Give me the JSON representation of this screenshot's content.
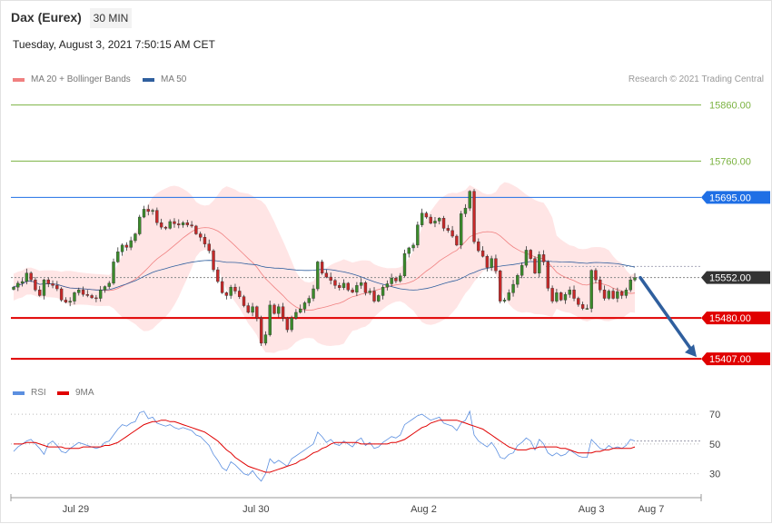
{
  "header": {
    "title": "Dax (Eurex)",
    "timeframe": "30 MIN",
    "datetime": "Tuesday, August 3, 2021 7:50:15 AM CET",
    "credit": "Research © 2021 Trading Central"
  },
  "legend_main": [
    {
      "label": "MA 20 + Bollinger Bands",
      "color": "#f08080"
    },
    {
      "label": "MA 50",
      "color": "#2f5f9e"
    }
  ],
  "legend_rsi": [
    {
      "label": "RSI",
      "color": "#5b8fe0"
    },
    {
      "label": "9MA",
      "color": "#e00000"
    }
  ],
  "chart_data": [
    {
      "type": "candlestick",
      "title": "Dax (Eurex)",
      "timeframe": "30 MIN",
      "x_tick_labels": [
        "Jul 29",
        "Jul 30",
        "Aug 2",
        "Aug 3",
        "Aug 7"
      ],
      "ylim": [
        15370,
        15895
      ],
      "levels": [
        {
          "value": 15860.0,
          "label": "15860.00",
          "color": "#7cb342",
          "style": "line"
        },
        {
          "value": 15760.0,
          "label": "15760.00",
          "color": "#7cb342",
          "style": "line"
        },
        {
          "value": 15695.0,
          "label": "15695.00",
          "color": "#1f6fe5",
          "style": "resistance"
        },
        {
          "value": 15552.0,
          "label": "15552.00",
          "color": "#333333",
          "style": "current"
        },
        {
          "value": 15480.0,
          "label": "15480.00",
          "color": "#e00000",
          "style": "support"
        },
        {
          "value": 15407.0,
          "label": "15407.00",
          "color": "#e00000",
          "style": "support"
        }
      ],
      "projection": {
        "from": 15552,
        "to": 15407,
        "color": "#2f5f9e"
      },
      "close": [
        15535,
        15542,
        15545,
        15560,
        15548,
        15530,
        15520,
        15548,
        15541,
        15538,
        15532,
        15512,
        15508,
        15510,
        15525,
        15530,
        15522,
        15520,
        15516,
        15515,
        15530,
        15536,
        15542,
        15580,
        15598,
        15610,
        15606,
        15618,
        15630,
        15660,
        15674,
        15670,
        15672,
        15650,
        15642,
        15640,
        15652,
        15648,
        15646,
        15650,
        15646,
        15644,
        15630,
        15624,
        15612,
        15600,
        15566,
        15545,
        15525,
        15520,
        15535,
        15528,
        15518,
        15502,
        15490,
        15500,
        15480,
        15435,
        15450,
        15503,
        15488,
        15500,
        15480,
        15459,
        15480,
        15490,
        15496,
        15507,
        15515,
        15532,
        15580,
        15560,
        15553,
        15547,
        15538,
        15534,
        15542,
        15530,
        15526,
        15538,
        15543,
        15525,
        15528,
        15510,
        15520,
        15535,
        15541,
        15551,
        15546,
        15555,
        15595,
        15605,
        15610,
        15646,
        15667,
        15660,
        15649,
        15653,
        15658,
        15640,
        15636,
        15626,
        15610,
        15666,
        15676,
        15706,
        15616,
        15600,
        15590,
        15570,
        15586,
        15564,
        15510,
        15512,
        15525,
        15540,
        15556,
        15574,
        15601,
        15586,
        15560,
        15593,
        15580,
        15533,
        15510,
        15525,
        15512,
        15522,
        15530,
        15515,
        15504,
        15497,
        15497,
        15565,
        15548,
        15530,
        15515,
        15528,
        15515,
        15527,
        15520,
        15530,
        15548,
        15552
      ]
    },
    {
      "type": "line",
      "title": "RSI",
      "ylim": [
        20,
        78
      ],
      "yticks": [
        70,
        50,
        30
      ],
      "series": [
        {
          "name": "RSI",
          "color": "#5b8fe0",
          "values": [
            45,
            48,
            50,
            52,
            53,
            50,
            47,
            43,
            50,
            52,
            49,
            45,
            44,
            47,
            49,
            51,
            50,
            49,
            48,
            47,
            48,
            51,
            52,
            56,
            60,
            63,
            62,
            64,
            65,
            71,
            72,
            67,
            68,
            64,
            63,
            62,
            63,
            61,
            60,
            61,
            60,
            59,
            56,
            55,
            52,
            49,
            43,
            39,
            34,
            32,
            38,
            36,
            33,
            30,
            29,
            32,
            28,
            25,
            30,
            40,
            37,
            39,
            37,
            35,
            40,
            42,
            44,
            46,
            48,
            50,
            58,
            55,
            51,
            53,
            50,
            49,
            52,
            50,
            48,
            52,
            54,
            49,
            51,
            47,
            48,
            51,
            53,
            55,
            54,
            56,
            63,
            65,
            67,
            69,
            70,
            68,
            66,
            67,
            68,
            64,
            63,
            62,
            59,
            64,
            66,
            72,
            56,
            52,
            50,
            48,
            51,
            47,
            41,
            40,
            43,
            44,
            49,
            51,
            54,
            52,
            46,
            53,
            50,
            44,
            42,
            44,
            42,
            43,
            46,
            44,
            42,
            41,
            41,
            53,
            50,
            47,
            46,
            49,
            47,
            48,
            47,
            49,
            53,
            52
          ]
        },
        {
          "name": "9MA",
          "color": "#e00000",
          "values": [
            50,
            50,
            50,
            51,
            51,
            51,
            50,
            49,
            48,
            48,
            48,
            48,
            47,
            47,
            47,
            47,
            48,
            48,
            48,
            48,
            48,
            49,
            49,
            50,
            51,
            53,
            55,
            57,
            59,
            61,
            63,
            64,
            65,
            65,
            66,
            66,
            65,
            65,
            64,
            63,
            62,
            61,
            60,
            59,
            58,
            56,
            54,
            52,
            49,
            46,
            44,
            41,
            39,
            37,
            35,
            34,
            33,
            32,
            31,
            31,
            32,
            33,
            34,
            35,
            36,
            37,
            39,
            40,
            42,
            44,
            45,
            47,
            48,
            50,
            51,
            51,
            51,
            51,
            51,
            51,
            50,
            50,
            50,
            50,
            50,
            50,
            50,
            51,
            51,
            52,
            53,
            55,
            57,
            59,
            61,
            62,
            64,
            65,
            66,
            66,
            66,
            66,
            66,
            65,
            64,
            63,
            62,
            61,
            60,
            58,
            56,
            54,
            52,
            50,
            48,
            47,
            46,
            46,
            46,
            47,
            47,
            48,
            48,
            48,
            48,
            48,
            47,
            47,
            46,
            45,
            44,
            44,
            44,
            44,
            45,
            45,
            46,
            46,
            47,
            47,
            47,
            47,
            47,
            48
          ]
        }
      ]
    }
  ]
}
